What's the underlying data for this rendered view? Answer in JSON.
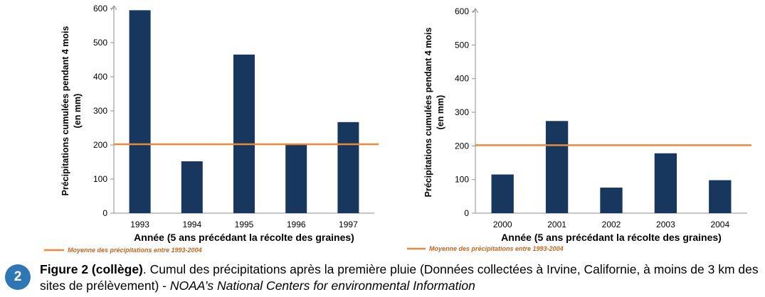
{
  "chart_data": [
    {
      "type": "bar",
      "categories": [
        "1993",
        "1994",
        "1995",
        "1996",
        "1997"
      ],
      "values": [
        595,
        152,
        465,
        200,
        267
      ],
      "ylim": [
        0,
        600
      ],
      "yticks": [
        0,
        100,
        200,
        300,
        400,
        500,
        600
      ],
      "ylabel_line1": "Précipitations cumulées pendant 4 mois",
      "ylabel_line2": "(en mm)",
      "xlabel": "Année (5 ans précédant la récolte des graines)",
      "reference_line": 202,
      "legend": "Moyenne des précipitations entre 1993-2004",
      "bar_color": "#17375e",
      "line_color": "#e88a3c"
    },
    {
      "type": "bar",
      "categories": [
        "2000",
        "2001",
        "2002",
        "2003",
        "2004"
      ],
      "values": [
        115,
        274,
        76,
        178,
        98
      ],
      "ylim": [
        0,
        600
      ],
      "yticks": [
        0,
        100,
        200,
        300,
        400,
        500,
        600
      ],
      "ylabel_line1": "Précipitations cumulées pendant 4 mois",
      "ylabel_line2": "(en mm)",
      "xlabel": "Année (5 ans précédant la récolte des graines)",
      "reference_line": 202,
      "legend": "Moyenne des précipitations entre 1993-2004",
      "bar_color": "#17375e",
      "line_color": "#e88a3c"
    }
  ],
  "caption": {
    "badge": "2",
    "title": "Figure 2 (collège)",
    "text": ". Cumul des précipitations après la première pluie (Données collectées à Irvine, Californie, à moins de 3 km des sites de prélèvement) - ",
    "source": "NOAA’s National Centers for environmental Information"
  }
}
